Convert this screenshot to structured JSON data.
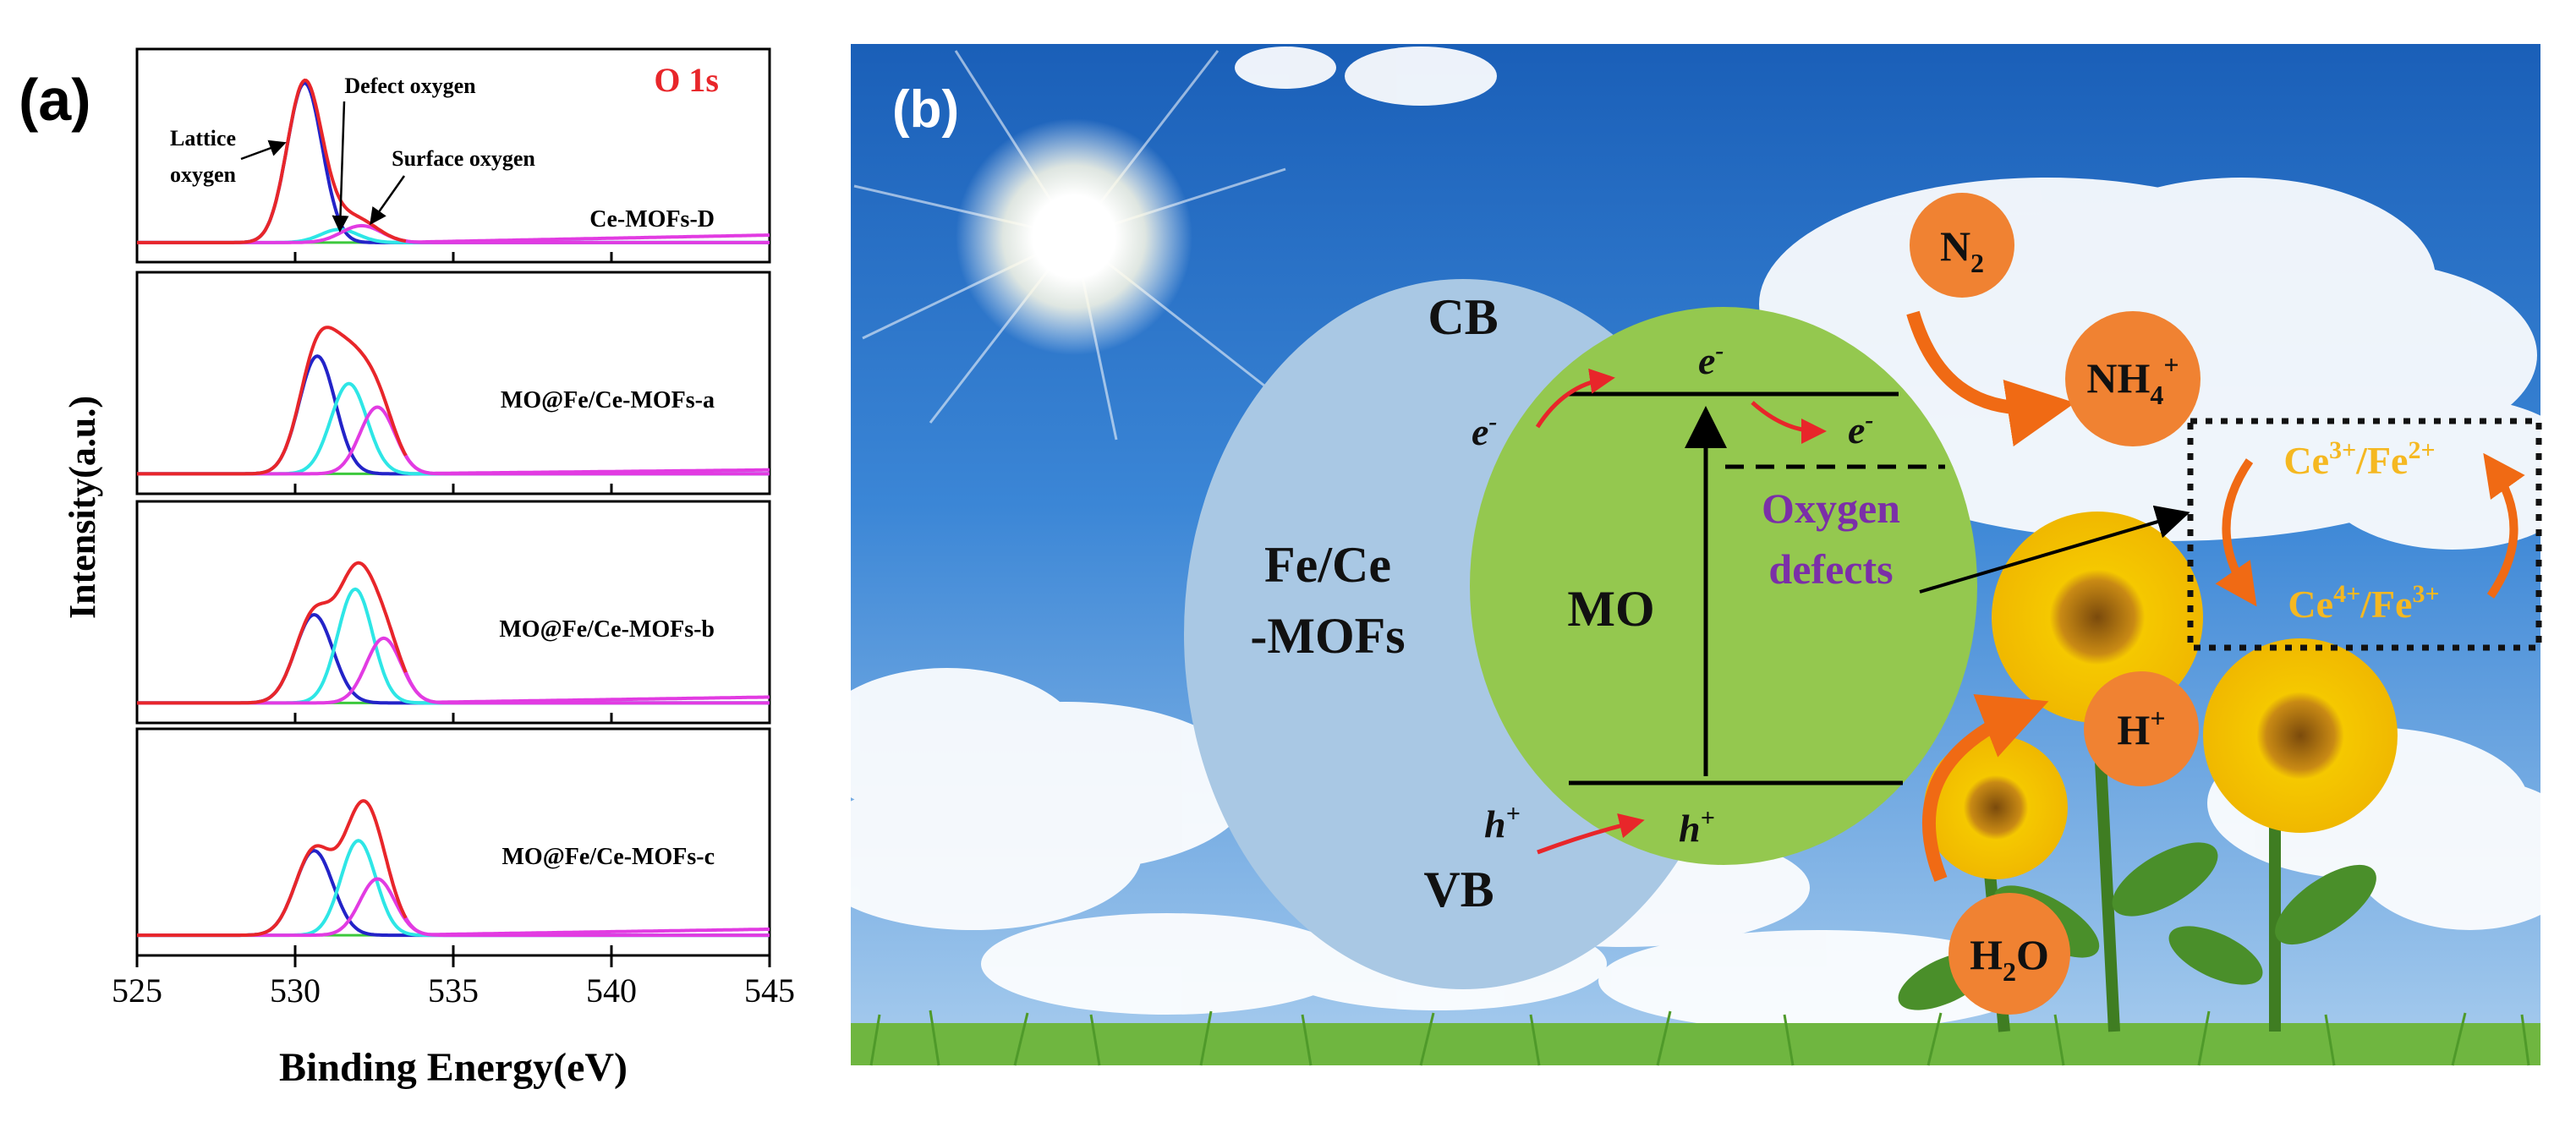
{
  "panel_a": {
    "label": "(a)",
    "element_label": "O 1s",
    "ylabel": "Intensity(a.u.)",
    "xlabel": "Binding Energy(eV)",
    "annotations": [
      "Lattice",
      "oxygen",
      "Defect oxygen",
      "Surface oxygen"
    ]
  },
  "chart_data": {
    "type": "line",
    "title": "O 1s",
    "xlabel": "Binding Energy(eV)",
    "ylabel": "Intensity(a.u.)",
    "xlim": [
      525,
      545
    ],
    "xticks": [
      525,
      530,
      535,
      540,
      545
    ],
    "stacked_panels": 4,
    "series_colors": {
      "envelope": "#e8262a",
      "lattice": "#2323c8",
      "defect": "#2ee6e6",
      "surface": "#e23be2",
      "baseline": "#3cc83c"
    },
    "panels": [
      {
        "name": "Ce-MOFs-D",
        "baseline": 0.05,
        "noise_tail": 0.09,
        "peaks": [
          {
            "name": "Lattice oxygen",
            "center": 530.3,
            "height": 0.85,
            "fwhm": 1.3
          },
          {
            "name": "Defect oxygen",
            "center": 531.4,
            "height": 0.07,
            "fwhm": 1.4
          },
          {
            "name": "Surface oxygen",
            "center": 532.1,
            "height": 0.09,
            "fwhm": 1.5
          }
        ]
      },
      {
        "name": "MO@Fe/Ce-MOFs-a",
        "baseline": 0.05,
        "noise_tail": 0.07,
        "peaks": [
          {
            "name": "Lattice oxygen",
            "center": 530.7,
            "height": 0.6,
            "fwhm": 1.35
          },
          {
            "name": "Defect oxygen",
            "center": 531.7,
            "height": 0.46,
            "fwhm": 1.35
          },
          {
            "name": "Surface oxygen",
            "center": 532.6,
            "height": 0.34,
            "fwhm": 1.3
          }
        ]
      },
      {
        "name": "MO@Fe/Ce-MOFs-b",
        "baseline": 0.05,
        "noise_tail": 0.08,
        "peaks": [
          {
            "name": "Lattice oxygen",
            "center": 530.6,
            "height": 0.45,
            "fwhm": 1.4
          },
          {
            "name": "Defect oxygen",
            "center": 531.9,
            "height": 0.58,
            "fwhm": 1.3
          },
          {
            "name": "Surface oxygen",
            "center": 532.8,
            "height": 0.33,
            "fwhm": 1.3
          }
        ]
      },
      {
        "name": "MO@Fe/Ce-MOFs-c",
        "baseline": 0.05,
        "noise_tail": 0.08,
        "peaks": [
          {
            "name": "Lattice oxygen",
            "center": 530.6,
            "height": 0.42,
            "fwhm": 1.4
          },
          {
            "name": "Defect oxygen",
            "center": 532.0,
            "height": 0.47,
            "fwhm": 1.3
          },
          {
            "name": "Surface oxygen",
            "center": 532.6,
            "height": 0.28,
            "fwhm": 1.3
          }
        ]
      }
    ]
  },
  "panel_b": {
    "label": "(b)",
    "cb": "CB",
    "vb": "VB",
    "mof_line1": "Fe/Ce",
    "mof_line2": "-MOFs",
    "mo": "MO",
    "electron": "e",
    "electron_sup": "-",
    "hole": "h",
    "hole_sup": "+",
    "oxygen_line1": "Oxygen",
    "oxygen_line2": "defects",
    "n2": "N",
    "n2_sub": "2",
    "nh4": "NH",
    "nh4_sub": "4",
    "nh4_sup": "+",
    "h_plus": "H",
    "h_plus_sup": "+",
    "h2o_a": "H",
    "h2o_sub": "2",
    "h2o_b": "O",
    "ce3": "Ce",
    "ce3_sup": "3+",
    "fe2": "/Fe",
    "fe2_sup": "2+",
    "ce4": "Ce",
    "ce4_sup": "4+",
    "fe3": "/Fe",
    "fe3_sup": "3+"
  }
}
